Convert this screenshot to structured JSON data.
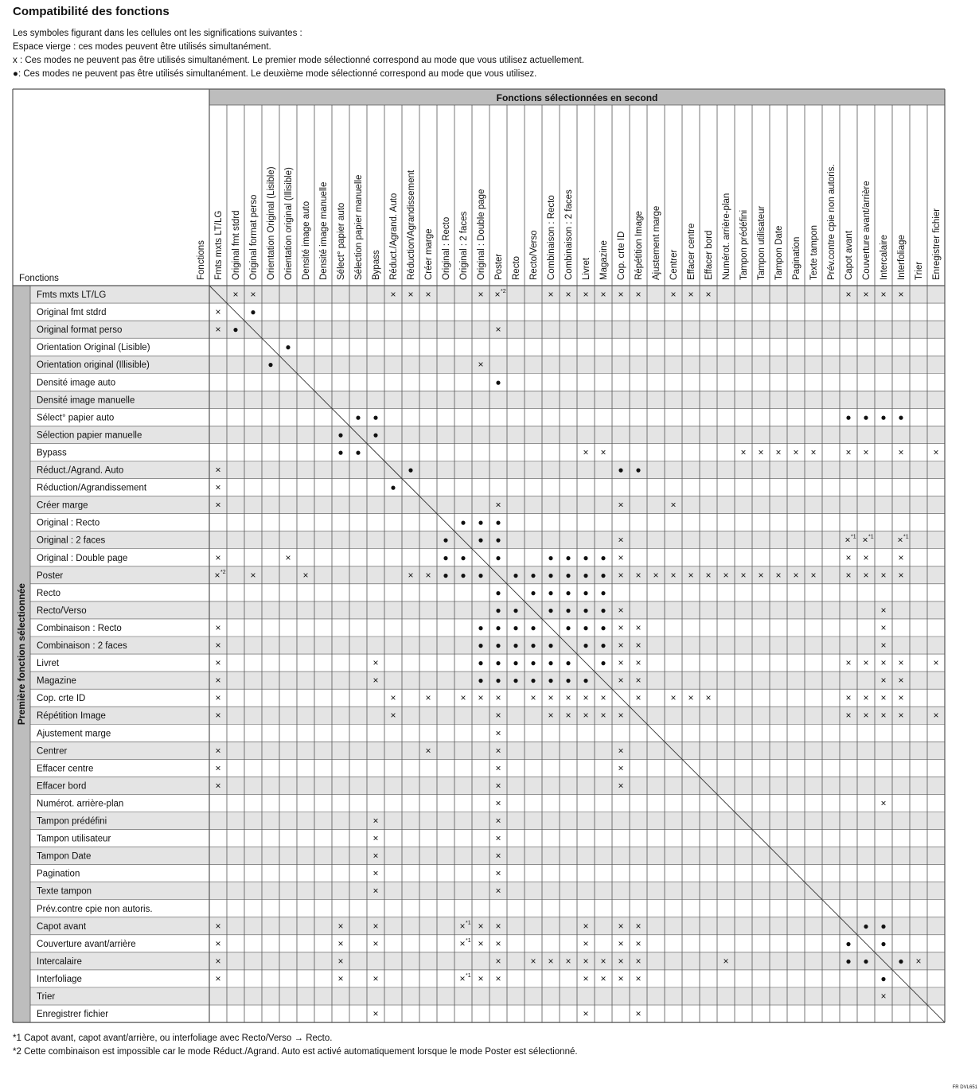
{
  "title": "Compatibilité des fonctions",
  "legend": [
    "Les symboles figurant dans les cellules ont les significations suivantes :",
    "Espace vierge : ces modes peuvent être utilisés simultanément.",
    "x : Ces modes ne peuvent pas être utilisés simultanément. Le premier mode sélectionné correspond au mode que vous utilisez actuellement.",
    "●: Ces modes ne peuvent pas être utilisés simultanément. Le deuxième mode sélectionné correspond au mode que vous utilisez."
  ],
  "table": {
    "column_group": "Fonctions sélectionnées en second",
    "row_group": "Première fonction sélectionnée",
    "corner_row_header": "Fonctions",
    "corner_column_header": "Fonctions",
    "columns": [
      "Fmts mxts LT/LG",
      "Original fmt stdrd",
      "Original format perso",
      "Orientation Original (Lisible)",
      "Orientation original (Illisible)",
      "Densité image auto",
      "Densité image manuelle",
      "Sélect° papier auto",
      "Sélection papier manuelle",
      "Bypass",
      "Réduct./Agrand. Auto",
      "Réduction/Agrandissement",
      "Créer marge",
      "Original : Recto",
      "Original : 2 faces",
      "Original : Double page",
      "Poster",
      "Recto",
      "Recto/Verso",
      "Combinaison : Recto",
      "Combinaison : 2 faces",
      "Livret",
      "Magazine",
      "Cop. crte ID",
      "Répétition Image",
      "Ajustement marge",
      "Centrer",
      "Effacer centre",
      "Effacer bord",
      "Numérot. arrière-plan",
      "Tampon prédéfini",
      "Tampon utilisateur",
      "Tampon Date",
      "Pagination",
      "Texte tampon",
      "Prév.contre cpie non autoris.",
      "Capot avant",
      "Couverture avant/arrière",
      "Intercalaire",
      "Interfoliage",
      "Trier",
      "Enregistrer fichier"
    ],
    "rows": [
      {
        "label": "Fmts mxts LT/LG",
        "cells": {
          "1": "×",
          "2": "×",
          "10": "×",
          "11": "×",
          "12": "×",
          "15": "×",
          "16": {
            "mark": "×",
            "note": "*2"
          },
          "19": "×",
          "20": "×",
          "21": "×",
          "22": "×",
          "23": "×",
          "24": "×",
          "26": "×",
          "27": "×",
          "28": "×",
          "36": "×",
          "37": "×",
          "38": "×",
          "39": "×"
        }
      },
      {
        "label": "Original fmt stdrd",
        "cells": {
          "0": "×",
          "2": "●"
        }
      },
      {
        "label": "Original format perso",
        "cells": {
          "0": "×",
          "1": "●",
          "16": "×"
        }
      },
      {
        "label": "Orientation Original (Lisible)",
        "cells": {
          "4": "●"
        }
      },
      {
        "label": "Orientation original (Illisible)",
        "cells": {
          "3": "●",
          "15": "×"
        }
      },
      {
        "label": "Densité image auto",
        "cells": {
          "16": "●"
        }
      },
      {
        "label": "Densité image manuelle",
        "cells": {}
      },
      {
        "label": "Sélect° papier auto",
        "cells": {
          "8": "●",
          "9": "●",
          "36": "●",
          "37": "●",
          "38": "●",
          "39": "●"
        }
      },
      {
        "label": "Sélection papier manuelle",
        "cells": {
          "7": "●",
          "9": "●"
        }
      },
      {
        "label": "Bypass",
        "cells": {
          "7": "●",
          "8": "●",
          "21": "×",
          "22": "×",
          "30": "×",
          "31": "×",
          "32": "×",
          "33": "×",
          "34": "×",
          "36": "×",
          "37": "×",
          "39": "×",
          "41": "×"
        }
      },
      {
        "label": "Réduct./Agrand. Auto",
        "cells": {
          "0": "×",
          "11": "●",
          "23": "●",
          "24": "●"
        }
      },
      {
        "label": "Réduction/Agrandissement",
        "cells": {
          "0": "×",
          "10": "●"
        }
      },
      {
        "label": "Créer marge",
        "cells": {
          "0": "×",
          "16": "×",
          "23": "×",
          "26": "×"
        }
      },
      {
        "label": "Original : Recto",
        "cells": {
          "14": "●",
          "15": "●",
          "16": "●"
        }
      },
      {
        "label": "Original : 2 faces",
        "cells": {
          "13": "●",
          "15": "●",
          "16": "●",
          "23": "×",
          "36": {
            "mark": "×",
            "note": "*1"
          },
          "37": {
            "mark": "×",
            "note": "*1"
          },
          "39": {
            "mark": "×",
            "note": "*1"
          }
        }
      },
      {
        "label": "Original : Double page",
        "cells": {
          "0": "×",
          "4": "×",
          "13": "●",
          "14": "●",
          "16": "●",
          "19": "●",
          "20": "●",
          "21": "●",
          "22": "●",
          "23": "×",
          "36": "×",
          "37": "×",
          "39": "×"
        }
      },
      {
        "label": "Poster",
        "cells": {
          "0": {
            "mark": "×",
            "note": "*2"
          },
          "2": "×",
          "5": "×",
          "11": "×",
          "12": "×",
          "13": "●",
          "14": "●",
          "15": "●",
          "17": "●",
          "18": "●",
          "19": "●",
          "20": "●",
          "21": "●",
          "22": "●",
          "23": "×",
          "24": "×",
          "25": "×",
          "26": "×",
          "27": "×",
          "28": "×",
          "29": "×",
          "30": "×",
          "31": "×",
          "32": "×",
          "33": "×",
          "34": "×",
          "36": "×",
          "37": "×",
          "38": "×",
          "39": "×"
        }
      },
      {
        "label": "Recto",
        "cells": {
          "16": "●",
          "18": "●",
          "19": "●",
          "20": "●",
          "21": "●",
          "22": "●"
        }
      },
      {
        "label": "Recto/Verso",
        "cells": {
          "16": "●",
          "17": "●",
          "19": "●",
          "20": "●",
          "21": "●",
          "22": "●",
          "23": "×",
          "38": "×"
        }
      },
      {
        "label": "Combinaison : Recto",
        "cells": {
          "0": "×",
          "15": "●",
          "16": "●",
          "17": "●",
          "18": "●",
          "20": "●",
          "21": "●",
          "22": "●",
          "23": "×",
          "24": "×",
          "38": "×"
        }
      },
      {
        "label": "Combinaison : 2 faces",
        "cells": {
          "0": "×",
          "15": "●",
          "16": "●",
          "17": "●",
          "18": "●",
          "19": "●",
          "21": "●",
          "22": "●",
          "23": "×",
          "24": "×",
          "38": "×"
        }
      },
      {
        "label": "Livret",
        "cells": {
          "0": "×",
          "9": "×",
          "15": "●",
          "16": "●",
          "17": "●",
          "18": "●",
          "19": "●",
          "20": "●",
          "22": "●",
          "23": "×",
          "24": "×",
          "36": "×",
          "37": "×",
          "38": "×",
          "39": "×",
          "41": "×"
        }
      },
      {
        "label": "Magazine",
        "cells": {
          "0": "×",
          "9": "×",
          "15": "●",
          "16": "●",
          "17": "●",
          "18": "●",
          "19": "●",
          "20": "●",
          "21": "●",
          "23": "×",
          "24": "×",
          "38": "×",
          "39": "×"
        }
      },
      {
        "label": "Cop. crte ID",
        "cells": {
          "0": "×",
          "10": "×",
          "12": "×",
          "14": "×",
          "15": "×",
          "16": "×",
          "18": "×",
          "19": "×",
          "20": "×",
          "21": "×",
          "22": "×",
          "24": "×",
          "26": "×",
          "27": "×",
          "28": "×",
          "36": "×",
          "37": "×",
          "38": "×",
          "39": "×"
        }
      },
      {
        "label": "Répétition Image",
        "cells": {
          "0": "×",
          "10": "×",
          "16": "×",
          "19": "×",
          "20": "×",
          "21": "×",
          "22": "×",
          "23": "×",
          "36": "×",
          "37": "×",
          "38": "×",
          "39": "×",
          "41": "×"
        }
      },
      {
        "label": "Ajustement marge",
        "cells": {
          "16": "×"
        }
      },
      {
        "label": "Centrer",
        "cells": {
          "0": "×",
          "12": "×",
          "16": "×",
          "23": "×"
        }
      },
      {
        "label": "Effacer centre",
        "cells": {
          "0": "×",
          "16": "×",
          "23": "×"
        }
      },
      {
        "label": "Effacer bord",
        "cells": {
          "0": "×",
          "16": "×",
          "23": "×"
        }
      },
      {
        "label": "Numérot. arrière-plan",
        "cells": {
          "16": "×",
          "38": "×"
        }
      },
      {
        "label": "Tampon prédéfini",
        "cells": {
          "9": "×",
          "16": "×"
        }
      },
      {
        "label": "Tampon utilisateur",
        "cells": {
          "9": "×",
          "16": "×"
        }
      },
      {
        "label": "Tampon Date",
        "cells": {
          "9": "×",
          "16": "×"
        }
      },
      {
        "label": "Pagination",
        "cells": {
          "9": "×",
          "16": "×"
        }
      },
      {
        "label": "Texte tampon",
        "cells": {
          "9": "×",
          "16": "×"
        }
      },
      {
        "label": "Prév.contre cpie non autoris.",
        "cells": {}
      },
      {
        "label": "Capot avant",
        "cells": {
          "0": "×",
          "7": "×",
          "9": "×",
          "14": {
            "mark": "×",
            "note": "*1"
          },
          "15": "×",
          "16": "×",
          "21": "×",
          "23": "×",
          "24": "×",
          "37": "●",
          "38": "●"
        }
      },
      {
        "label": "Couverture avant/arrière",
        "cells": {
          "0": "×",
          "7": "×",
          "9": "×",
          "14": {
            "mark": "×",
            "note": "*1"
          },
          "15": "×",
          "16": "×",
          "21": "×",
          "23": "×",
          "24": "×",
          "36": "●",
          "38": "●"
        }
      },
      {
        "label": "Intercalaire",
        "cells": {
          "0": "×",
          "7": "×",
          "16": "×",
          "18": "×",
          "19": "×",
          "20": "×",
          "21": "×",
          "22": "×",
          "23": "×",
          "24": "×",
          "29": "×",
          "36": "●",
          "37": "●",
          "39": "●",
          "40": "×"
        }
      },
      {
        "label": "Interfoliage",
        "cells": {
          "0": "×",
          "7": "×",
          "9": "×",
          "14": {
            "mark": "×",
            "note": "*1"
          },
          "15": "×",
          "16": "×",
          "21": "×",
          "22": "×",
          "23": "×",
          "24": "×",
          "38": "●"
        }
      },
      {
        "label": "Trier",
        "cells": {
          "38": "×"
        }
      },
      {
        "label": "Enregistrer fichier",
        "cells": {
          "9": "×",
          "21": "×",
          "24": "×"
        }
      }
    ]
  },
  "footnotes": [
    "*1 Capot avant, capot avant/arrière, ou interfoliage avec Recto/Verso → Recto.",
    "*2 Cette combinaison est impossible car le mode Réduct./Agrand. Auto est activé automatiquement lorsque le mode Poster est sélectionné."
  ],
  "figure_id": "FR DVL651"
}
